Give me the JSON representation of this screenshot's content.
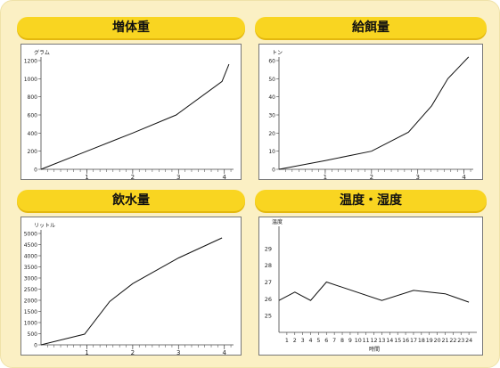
{
  "panels": [
    {
      "title": "増体重"
    },
    {
      "title": "給餌量"
    },
    {
      "title": "飲水量"
    },
    {
      "title": "温度・湿度"
    }
  ],
  "chart_data": [
    {
      "type": "line",
      "title": "増体重",
      "ylabel": "グラム",
      "xlabel": "週",
      "xlim": [
        0,
        4.2
      ],
      "ylim": [
        0,
        1200
      ],
      "yticks": [
        0,
        200,
        400,
        600,
        800,
        1000,
        1200
      ],
      "xtick_labels": [
        "1",
        "2",
        "3",
        "4"
      ],
      "x_minor_per_unit": 7,
      "series": [
        {
          "x": [
            0,
            1,
            2,
            2.95,
            3.95,
            4.1
          ],
          "values": [
            0,
            200,
            400,
            600,
            970,
            1160
          ]
        }
      ]
    },
    {
      "type": "line",
      "title": "給餌量",
      "ylabel": "トン",
      "xlabel": "週",
      "xlim": [
        0,
        4.2
      ],
      "ylim": [
        0,
        60
      ],
      "yticks": [
        0,
        10,
        20,
        30,
        40,
        50,
        60
      ],
      "xtick_labels": [
        "1",
        "2",
        "3",
        "4"
      ],
      "x_minor_per_unit": 7,
      "series": [
        {
          "x": [
            0,
            1,
            2,
            2.8,
            3.3,
            3.65,
            4.1
          ],
          "values": [
            0,
            4.8,
            10,
            20.5,
            35,
            50,
            62
          ]
        }
      ]
    },
    {
      "type": "line",
      "title": "飲水量",
      "ylabel": "リットル",
      "xlabel": "週",
      "xlim": [
        0,
        4.2
      ],
      "ylim": [
        0,
        5000
      ],
      "yticks": [
        0,
        500,
        1000,
        1500,
        2000,
        2500,
        3000,
        3500,
        4000,
        4500,
        5000
      ],
      "xtick_labels": [
        "1",
        "2",
        "3",
        "4"
      ],
      "x_minor_per_unit": 7,
      "series": [
        {
          "x": [
            0,
            0.95,
            1.5,
            2,
            3,
            3.95
          ],
          "values": [
            0,
            480,
            1950,
            2750,
            3900,
            4800
          ]
        }
      ]
    },
    {
      "type": "line",
      "title": "温度・湿度",
      "ylabel": "温度",
      "xlabel": "時間",
      "xlim": [
        0,
        25
      ],
      "ylim": [
        24,
        30
      ],
      "yticks": [
        25,
        26,
        27,
        28,
        29
      ],
      "xtick_labels": [
        "1",
        "2",
        "3",
        "4",
        "5",
        "6",
        "7",
        "8",
        "9",
        "10",
        "11",
        "12",
        "13",
        "14",
        "15",
        "16",
        "17",
        "18",
        "19",
        "20",
        "21",
        "22",
        "23",
        "24"
      ],
      "series": [
        {
          "x": [
            0,
            2,
            4,
            6,
            13,
            17,
            21,
            24
          ],
          "values": [
            25.9,
            26.4,
            25.9,
            27,
            25.9,
            26.5,
            26.3,
            25.8
          ]
        }
      ]
    }
  ]
}
